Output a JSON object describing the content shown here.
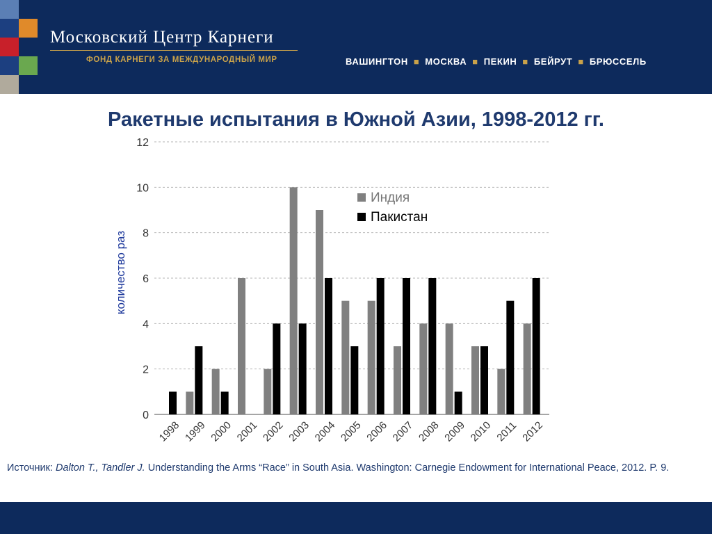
{
  "header": {
    "org_title": "Московский Центр Карнеги",
    "org_subtitle": "ФОНД КАРНЕГИ ЗА МЕЖДУНАРОДНЫЙ МИР",
    "cities": [
      "ВАШИНГТОН",
      "МОСКВА",
      "ПЕКИН",
      "БЕЙРУТ",
      "БРЮССЕЛЬ"
    ]
  },
  "slide": {
    "title": "Ракетные испытания в Южной Азии, 1998-2012 гг."
  },
  "chart_data": {
    "type": "bar",
    "categories": [
      "1998",
      "1999",
      "2000",
      "2001",
      "2002",
      "2003",
      "2004",
      "2005",
      "2006",
      "2007",
      "2008",
      "2009",
      "2010",
      "2011",
      "2012"
    ],
    "series": [
      {
        "name": "Индия",
        "color": "#808080",
        "values": [
          0,
          1,
          2,
          6,
          2,
          10,
          9,
          5,
          5,
          3,
          4,
          4,
          3,
          2,
          4
        ]
      },
      {
        "name": "Пакистан",
        "color": "#000000",
        "values": [
          1,
          3,
          1,
          0,
          4,
          4,
          6,
          3,
          6,
          6,
          6,
          1,
          3,
          5,
          6
        ]
      }
    ],
    "ylabel": "количество раз",
    "ylim": [
      0,
      12
    ],
    "yticks": [
      0,
      2,
      4,
      6,
      8,
      10,
      12
    ],
    "grid": true,
    "legend": "top-right"
  },
  "source": {
    "prefix": "Источник: ",
    "authors": "Dalton T., Tandler J.",
    "text": " Understanding the Arms “Race” in South Asia. Washington: Carnegie Endowment for International Peace, 2012. P. 9."
  }
}
